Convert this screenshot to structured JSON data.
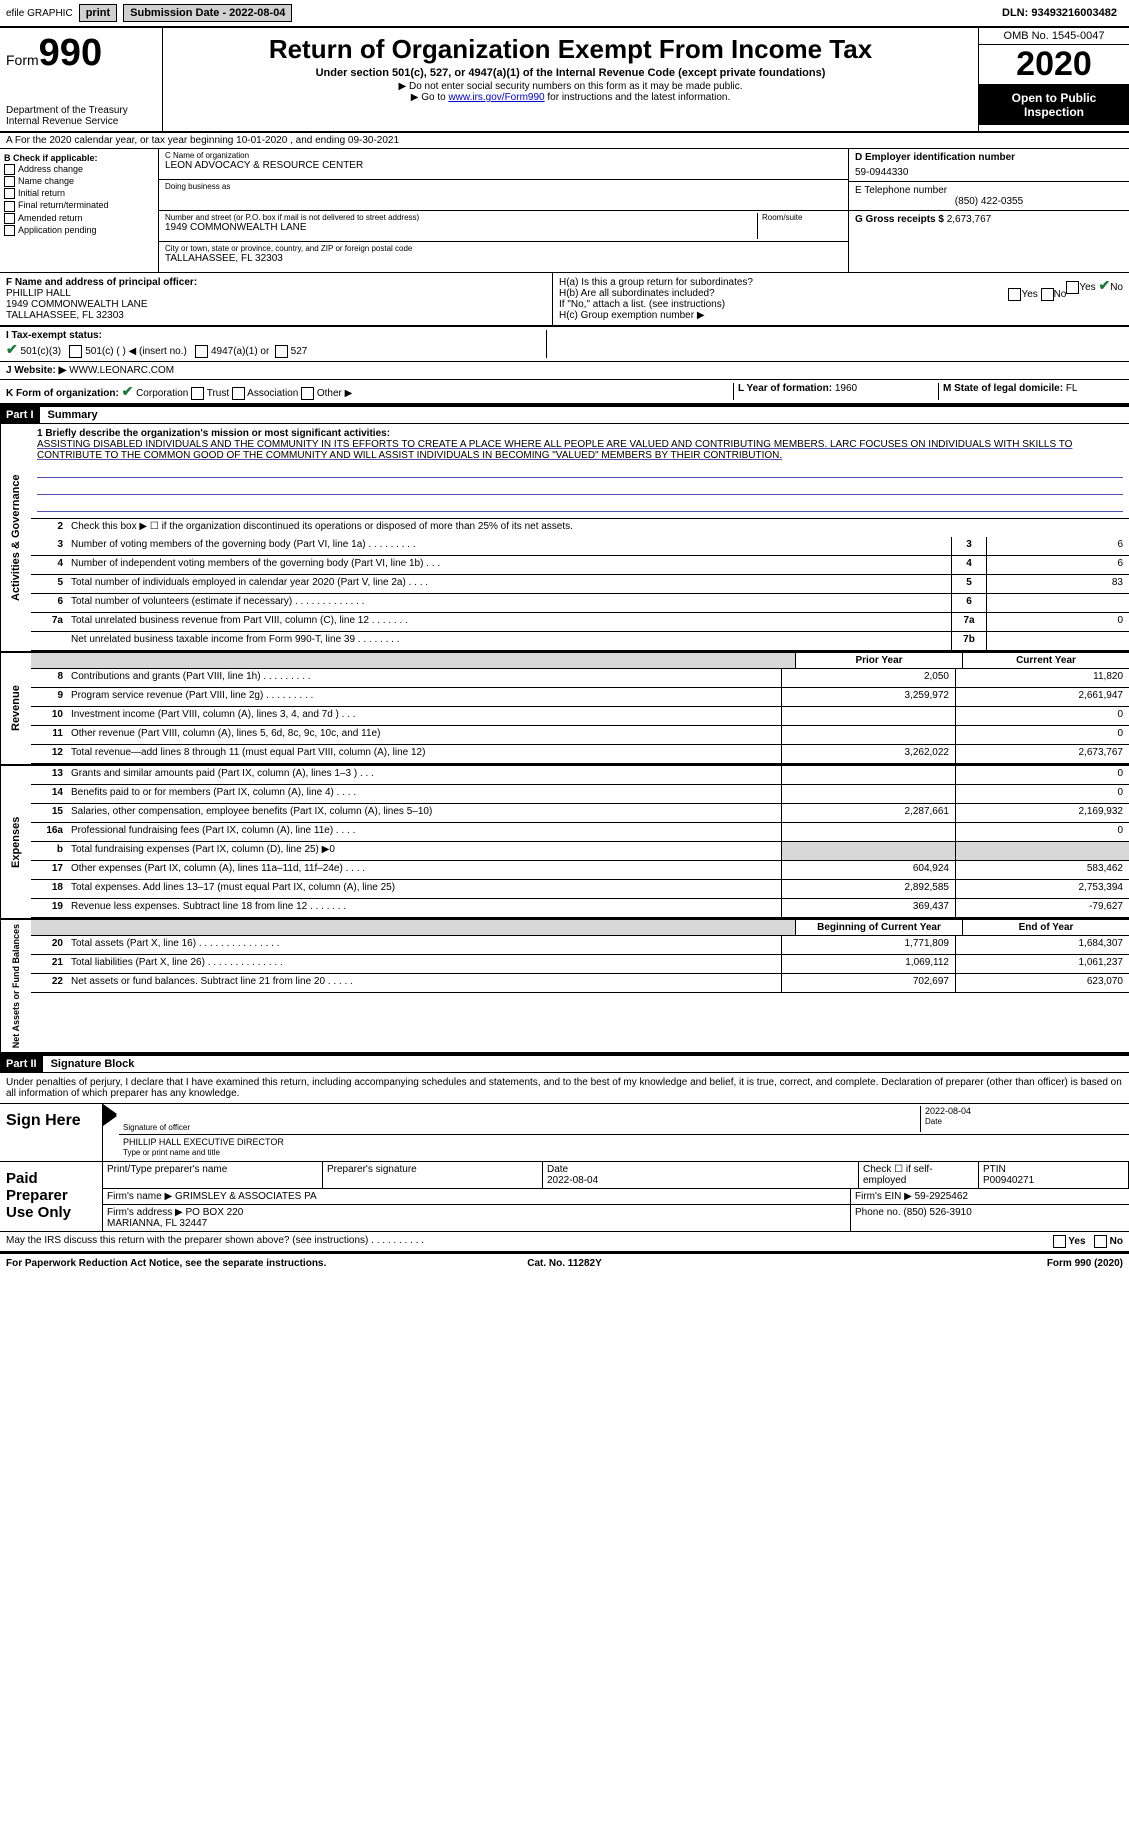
{
  "top_bar": {
    "efile": "efile GRAPHIC",
    "print": "print",
    "submission": "Submission Date - 2022-08-04",
    "dln": "DLN: 93493216003482"
  },
  "header": {
    "form_label": "Form",
    "form_number": "990",
    "dept": "Department of the Treasury\nInternal Revenue Service",
    "title": "Return of Organization Exempt From Income Tax",
    "sub1": "Under section 501(c), 527, or 4947(a)(1) of the Internal Revenue Code (except private foundations)",
    "sub2": "▶ Do not enter social security numbers on this form as it may be made public.",
    "sub3_prefix": "▶ Go to ",
    "sub3_link": "www.irs.gov/Form990",
    "sub3_suffix": " for instructions and the latest information.",
    "omb": "OMB No. 1545-0047",
    "year": "2020",
    "open": "Open to Public Inspection"
  },
  "line_a": "A For the 2020 calendar year, or tax year beginning 10-01-2020    , and ending 09-30-2021",
  "box_b": {
    "title": "B Check if applicable:",
    "options": [
      "Address change",
      "Name change",
      "Initial return",
      "Final return/terminated",
      "Amended return",
      "Application pending"
    ]
  },
  "box_c": {
    "name_label": "C Name of organization",
    "name": "LEON ADVOCACY & RESOURCE CENTER",
    "dba_label": "Doing business as",
    "dba": "",
    "addr_label": "Number and street (or P.O. box if mail is not delivered to street address)",
    "room_label": "Room/suite",
    "addr": "1949 COMMONWEALTH LANE",
    "city_label": "City or town, state or province, country, and ZIP or foreign postal code",
    "city": "TALLAHASSEE, FL  32303"
  },
  "box_d": {
    "label": "D Employer identification number",
    "value": "59-0944330"
  },
  "box_e": {
    "label": "E Telephone number",
    "value": "(850) 422-0355"
  },
  "box_g": {
    "label": "G Gross receipts $",
    "value": "2,673,767"
  },
  "box_f": {
    "label": "F  Name and address of principal officer:",
    "name": "PHILLIP HALL",
    "addr1": "1949 COMMONWEALTH LANE",
    "addr2": "TALLAHASSEE, FL  32303"
  },
  "box_h": {
    "ha": "H(a)  Is this a group return for subordinates?",
    "ha_yes": "Yes",
    "ha_no": "No",
    "hb": "H(b)  Are all subordinates included?",
    "hb_note": "If \"No,\" attach a list. (see instructions)",
    "hc": "H(c)  Group exemption number ▶"
  },
  "row_i": {
    "label": "I    Tax-exempt status:",
    "opts": [
      "501(c)(3)",
      "501(c) (  ) ◀ (insert no.)",
      "4947(a)(1) or",
      "527"
    ]
  },
  "row_j": {
    "label": "J   Website: ▶",
    "value": "WWW.LEONARC.COM"
  },
  "row_k": {
    "label": "K Form of organization:",
    "opts": [
      "Corporation",
      "Trust",
      "Association",
      "Other ▶"
    ]
  },
  "row_l": {
    "label": "L Year of formation:",
    "value": "1960"
  },
  "row_m": {
    "label": "M State of legal domicile:",
    "value": "FL"
  },
  "part1": {
    "tag": "Part I",
    "title": "Summary",
    "q1_label": "1  Briefly describe the organization's mission or most significant activities:",
    "q1_text": "ASSISTING DISABLED INDIVIDUALS AND THE COMMUNITY IN ITS EFFORTS TO CREATE A PLACE WHERE ALL PEOPLE ARE VALUED AND CONTRIBUTING MEMBERS. LARC FOCUSES ON INDIVIDUALS WITH SKILLS TO CONTRIBUTE TO THE COMMON GOOD OF THE COMMUNITY AND WILL ASSIST INDIVIDUALS IN BECOMING \"VALUED\" MEMBERS BY THEIR CONTRIBUTION.",
    "q2": "Check this box ▶ ☐ if the organization discontinued its operations or disposed of more than 25% of its net assets.",
    "gov_label": "Activities & Governance",
    "rev_label": "Revenue",
    "exp_label": "Expenses",
    "net_label": "Net Assets or Fund Balances",
    "prior_header": "Prior Year",
    "current_header": "Current Year",
    "begin_header": "Beginning of Current Year",
    "end_header": "End of Year",
    "lines_gov": [
      {
        "n": "3",
        "d": "Number of voting members of the governing body (Part VI, line 1a)  .  .  .  .  .  .  .  .  .",
        "bn": "3",
        "v": "6"
      },
      {
        "n": "4",
        "d": "Number of independent voting members of the governing body (Part VI, line 1b)  .  .  .",
        "bn": "4",
        "v": "6"
      },
      {
        "n": "5",
        "d": "Total number of individuals employed in calendar year 2020 (Part V, line 2a)  .  .  .  .",
        "bn": "5",
        "v": "83"
      },
      {
        "n": "6",
        "d": "Total number of volunteers (estimate if necessary)  .  .  .  .  .  .  .  .  .  .  .  .  .",
        "bn": "6",
        "v": ""
      },
      {
        "n": "7a",
        "d": "Total unrelated business revenue from Part VIII, column (C), line 12  .  .  .  .  .  .  .",
        "bn": "7a",
        "v": "0"
      },
      {
        "n": "",
        "d": "Net unrelated business taxable income from Form 990-T, line 39  .  .  .  .  .  .  .  .",
        "bn": "7b",
        "v": ""
      }
    ],
    "lines_rev": [
      {
        "n": "8",
        "d": "Contributions and grants (Part VIII, line 1h)  .  .  .  .  .  .  .  .  .",
        "p": "2,050",
        "c": "11,820"
      },
      {
        "n": "9",
        "d": "Program service revenue (Part VIII, line 2g)  .  .  .  .  .  .  .  .  .",
        "p": "3,259,972",
        "c": "2,661,947"
      },
      {
        "n": "10",
        "d": "Investment income (Part VIII, column (A), lines 3, 4, and 7d )  .  .  .",
        "p": "",
        "c": "0"
      },
      {
        "n": "11",
        "d": "Other revenue (Part VIII, column (A), lines 5, 6d, 8c, 9c, 10c, and 11e)",
        "p": "",
        "c": "0"
      },
      {
        "n": "12",
        "d": "Total revenue—add lines 8 through 11 (must equal Part VIII, column (A), line 12)",
        "p": "3,262,022",
        "c": "2,673,767"
      }
    ],
    "lines_exp": [
      {
        "n": "13",
        "d": "Grants and similar amounts paid (Part IX, column (A), lines 1–3 )  .  .  .",
        "p": "",
        "c": "0"
      },
      {
        "n": "14",
        "d": "Benefits paid to or for members (Part IX, column (A), line 4)  .  .  .  .",
        "p": "",
        "c": "0"
      },
      {
        "n": "15",
        "d": "Salaries, other compensation, employee benefits (Part IX, column (A), lines 5–10)",
        "p": "2,287,661",
        "c": "2,169,932"
      },
      {
        "n": "16a",
        "d": "Professional fundraising fees (Part IX, column (A), line 11e)  .  .  .  .",
        "p": "",
        "c": "0"
      },
      {
        "n": "b",
        "d": "Total fundraising expenses (Part IX, column (D), line 25) ▶0",
        "p": "SHADE",
        "c": "SHADE"
      },
      {
        "n": "17",
        "d": "Other expenses (Part IX, column (A), lines 11a–11d, 11f–24e)  .  .  .  .",
        "p": "604,924",
        "c": "583,462"
      },
      {
        "n": "18",
        "d": "Total expenses. Add lines 13–17 (must equal Part IX, column (A), line 25)",
        "p": "2,892,585",
        "c": "2,753,394"
      },
      {
        "n": "19",
        "d": "Revenue less expenses. Subtract line 18 from line 12  .  .  .  .  .  .  .",
        "p": "369,437",
        "c": "-79,627"
      }
    ],
    "lines_net": [
      {
        "n": "20",
        "d": "Total assets (Part X, line 16)  .  .  .  .  .  .  .  .  .  .  .  .  .  .  .",
        "p": "1,771,809",
        "c": "1,684,307"
      },
      {
        "n": "21",
        "d": "Total liabilities (Part X, line 26)  .  .  .  .  .  .  .  .  .  .  .  .  .  .",
        "p": "1,069,112",
        "c": "1,061,237"
      },
      {
        "n": "22",
        "d": "Net assets or fund balances. Subtract line 21 from line 20  .  .  .  .  .",
        "p": "702,697",
        "c": "623,070"
      }
    ]
  },
  "part2": {
    "tag": "Part II",
    "title": "Signature Block",
    "declare": "Under penalties of perjury, I declare that I have examined this return, including accompanying schedules and statements, and to the best of my knowledge and belief, it is true, correct, and complete. Declaration of preparer (other than officer) is based on all information of which preparer has any knowledge.",
    "sign_here": "Sign Here",
    "sig_officer": "Signature of officer",
    "sig_date": "2022-08-04",
    "date_label": "Date",
    "officer_name": "PHILLIP HALL  EXECUTIVE DIRECTOR",
    "type_label": "Type or print name and title",
    "paid": "Paid Preparer Use Only",
    "prep_name_label": "Print/Type preparer's name",
    "prep_sig_label": "Preparer's signature",
    "prep_date_label": "Date",
    "prep_date": "2022-08-04",
    "check_self": "Check ☐ if self-employed",
    "ptin_label": "PTIN",
    "ptin": "P00940271",
    "firm_name_label": "Firm's name     ▶",
    "firm_name": "GRIMSLEY & ASSOCIATES PA",
    "firm_ein_label": "Firm's EIN ▶",
    "firm_ein": "59-2925462",
    "firm_addr_label": "Firm's address ▶",
    "firm_addr": "PO BOX 220\nMARIANNA, FL  32447",
    "phone_label": "Phone no.",
    "phone": "(850) 526-3910",
    "discuss": "May the IRS discuss this return with the preparer shown above? (see instructions)  .  .  .  .  .  .  .  .  .  .",
    "yes": "Yes",
    "no": "No"
  },
  "footer": {
    "left": "For Paperwork Reduction Act Notice, see the separate instructions.",
    "center": "Cat. No. 11282Y",
    "right": "Form 990 (2020)"
  }
}
